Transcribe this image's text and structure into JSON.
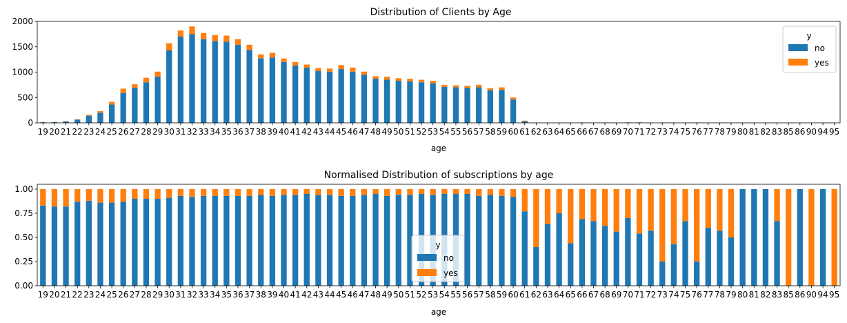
{
  "chart_data": [
    {
      "type": "bar",
      "stacked": true,
      "title": "Distribution of Clients by Age",
      "xlabel": "age",
      "ylabel": "",
      "ylim": [
        0,
        2000
      ],
      "yticks": [
        "0",
        "500",
        "1000",
        "1500",
        "2000"
      ],
      "legend": {
        "title": "y",
        "placement": "top-right"
      },
      "categories": [
        "19",
        "20",
        "21",
        "22",
        "23",
        "24",
        "25",
        "26",
        "27",
        "28",
        "29",
        "30",
        "31",
        "32",
        "33",
        "34",
        "35",
        "36",
        "37",
        "38",
        "39",
        "40",
        "41",
        "42",
        "43",
        "44",
        "45",
        "46",
        "47",
        "48",
        "49",
        "50",
        "51",
        "52",
        "53",
        "54",
        "55",
        "56",
        "57",
        "58",
        "59",
        "60",
        "61",
        "62",
        "63",
        "64",
        "65",
        "66",
        "67",
        "68",
        "69",
        "70",
        "71",
        "72",
        "73",
        "74",
        "75",
        "76",
        "77",
        "78",
        "79",
        "80",
        "81",
        "82",
        "83",
        "85",
        "86",
        "90",
        "94",
        "95"
      ],
      "series": [
        {
          "name": "no",
          "color": "#1f77b4",
          "values": [
            12,
            14,
            27,
            62,
            140,
            200,
            360,
            590,
            690,
            800,
            910,
            1430,
            1700,
            1750,
            1650,
            1610,
            1600,
            1540,
            1440,
            1270,
            1290,
            1200,
            1130,
            1090,
            1020,
            1010,
            1060,
            1010,
            950,
            870,
            850,
            830,
            820,
            800,
            780,
            710,
            700,
            690,
            700,
            640,
            650,
            460,
            33,
            3,
            4,
            3,
            3,
            6,
            4,
            5,
            3,
            7,
            6,
            4,
            2,
            3,
            4,
            2,
            3,
            4,
            2,
            3,
            2,
            3,
            2,
            0,
            2,
            0,
            2,
            0
          ]
        },
        {
          "name": "yes",
          "color": "#ff7f0e",
          "values": [
            3,
            3,
            5,
            9,
            18,
            30,
            55,
            85,
            70,
            90,
            100,
            140,
            120,
            150,
            120,
            120,
            120,
            110,
            100,
            80,
            90,
            70,
            70,
            60,
            60,
            60,
            80,
            80,
            60,
            50,
            60,
            50,
            50,
            50,
            50,
            40,
            40,
            40,
            50,
            40,
            50,
            40,
            10,
            4,
            2,
            1,
            4,
            2,
            2,
            3,
            3,
            3,
            5,
            3,
            6,
            4,
            2,
            6,
            2,
            3,
            2,
            0,
            0,
            0,
            1,
            1,
            0,
            1,
            0,
            1
          ]
        }
      ]
    },
    {
      "type": "bar",
      "stacked": true,
      "title": "Normalised Distribution of subscriptions by age",
      "xlabel": "age",
      "ylabel": "",
      "ylim": [
        0,
        1.05
      ],
      "yticks": [
        "0.00",
        "0.25",
        "0.50",
        "0.75",
        "1.00"
      ],
      "legend": {
        "title": "y",
        "placement": "lower-center"
      },
      "categories": [
        "19",
        "20",
        "21",
        "22",
        "23",
        "24",
        "25",
        "26",
        "27",
        "28",
        "29",
        "30",
        "31",
        "32",
        "33",
        "34",
        "35",
        "36",
        "37",
        "38",
        "39",
        "40",
        "41",
        "42",
        "43",
        "44",
        "45",
        "46",
        "47",
        "48",
        "49",
        "50",
        "51",
        "52",
        "53",
        "54",
        "55",
        "56",
        "57",
        "58",
        "59",
        "60",
        "61",
        "62",
        "63",
        "64",
        "65",
        "66",
        "67",
        "68",
        "69",
        "70",
        "71",
        "72",
        "73",
        "74",
        "75",
        "76",
        "77",
        "78",
        "79",
        "80",
        "81",
        "82",
        "83",
        "85",
        "86",
        "90",
        "94",
        "95"
      ],
      "series": [
        {
          "name": "no",
          "color": "#1f77b4",
          "values": [
            0.83,
            0.82,
            0.82,
            0.87,
            0.88,
            0.86,
            0.86,
            0.87,
            0.9,
            0.9,
            0.9,
            0.91,
            0.93,
            0.92,
            0.93,
            0.93,
            0.93,
            0.93,
            0.93,
            0.94,
            0.93,
            0.94,
            0.94,
            0.95,
            0.94,
            0.94,
            0.93,
            0.93,
            0.94,
            0.95,
            0.93,
            0.94,
            0.94,
            0.95,
            0.94,
            0.95,
            0.95,
            0.95,
            0.93,
            0.94,
            0.93,
            0.92,
            0.77,
            0.4,
            0.64,
            0.75,
            0.44,
            0.69,
            0.67,
            0.62,
            0.56,
            0.7,
            0.54,
            0.57,
            0.25,
            0.43,
            0.67,
            0.25,
            0.6,
            0.57,
            0.5,
            1,
            1,
            1,
            0.67,
            0,
            1,
            0,
            1,
            0
          ]
        },
        {
          "name": "yes",
          "color": "#ff7f0e",
          "values": [
            0.17,
            0.18,
            0.18,
            0.13,
            0.12,
            0.14,
            0.14,
            0.13,
            0.1,
            0.1,
            0.1,
            0.09,
            0.07,
            0.08,
            0.07,
            0.07,
            0.07,
            0.07,
            0.07,
            0.06,
            0.07,
            0.06,
            0.06,
            0.05,
            0.06,
            0.06,
            0.07,
            0.07,
            0.06,
            0.05,
            0.07,
            0.06,
            0.06,
            0.05,
            0.06,
            0.05,
            0.05,
            0.05,
            0.07,
            0.06,
            0.07,
            0.08,
            0.23,
            0.6,
            0.36,
            0.25,
            0.56,
            0.31,
            0.33,
            0.38,
            0.44,
            0.3,
            0.46,
            0.43,
            0.75,
            0.57,
            0.33,
            0.75,
            0.4,
            0.43,
            0.5,
            0,
            0,
            0,
            0.33,
            1,
            0,
            1,
            0,
            1
          ]
        }
      ]
    }
  ]
}
